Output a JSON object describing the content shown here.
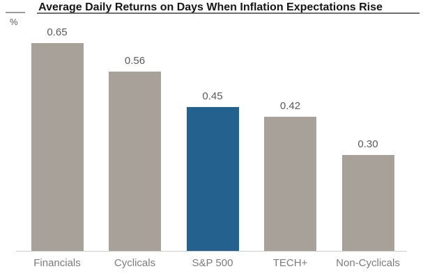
{
  "chart_data": {
    "type": "bar",
    "title": "Average Daily Returns on Days When Inflation Expectations Rise",
    "unit_label": "%",
    "categories": [
      "Financials",
      "Cyclicals",
      "S&P 500",
      "TECH+",
      "Non-Cyclicals"
    ],
    "values": [
      0.65,
      0.56,
      0.45,
      0.42,
      0.3
    ],
    "value_labels": [
      "0.65",
      "0.56",
      "0.45",
      "0.42",
      "0.30"
    ],
    "highlight_category": "S&P 500",
    "ylabel": "%",
    "xlabel": "",
    "ylim": [
      0,
      0.7
    ],
    "grid": false,
    "legend": false,
    "colors": {
      "bar_default": "#a8a19a",
      "bar_highlight": "#24618f",
      "title_text": "#161616",
      "value_label": "#595959",
      "category_label": "#7b7b7b",
      "baseline": "#cfcdca",
      "title_rule": "#6e6e6e"
    }
  }
}
